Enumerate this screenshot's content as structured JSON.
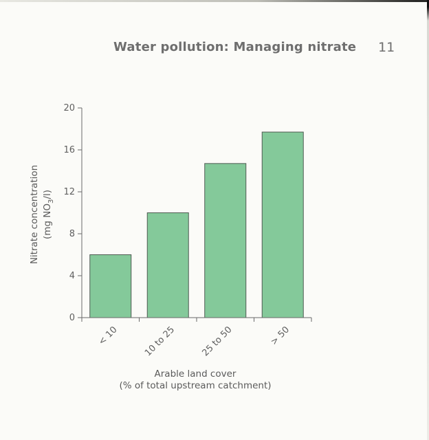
{
  "page": {
    "header_title": "Water pollution: Managing nitrate",
    "page_number": "11"
  },
  "chart_data": {
    "type": "bar",
    "categories": [
      "< 10",
      "10 to 25",
      "25 to 50",
      "> 50"
    ],
    "values": [
      6,
      10,
      14.7,
      17.7
    ],
    "xlabel": "Arable land cover",
    "xlabel_line2": "(% of total upstream catchment)",
    "ylabel": "Nitrate concentration",
    "ylabel_line2_prefix": "(mg NO",
    "ylabel_line2_subscript": "3",
    "ylabel_line2_suffix": "/l)",
    "ylim": [
      0,
      20
    ],
    "yticks": [
      0,
      4,
      8,
      12,
      16,
      20
    ],
    "grid": false,
    "colors": {
      "bar_fill": "#84c99a",
      "bar_stroke": "#4f5a52",
      "axis": "#6a6a6a"
    }
  }
}
